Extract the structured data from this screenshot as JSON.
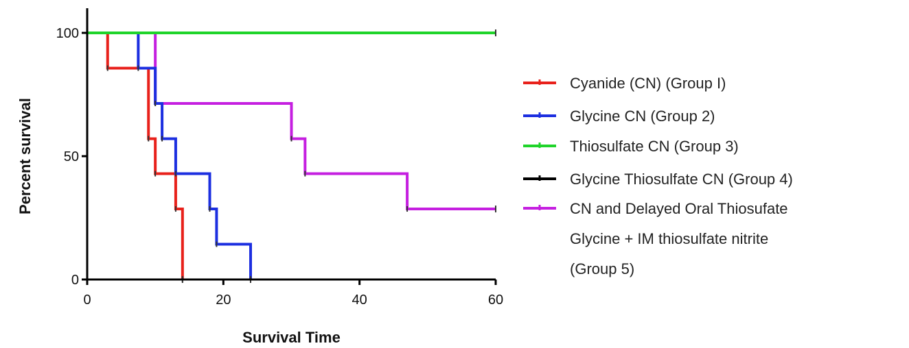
{
  "chart_data": {
    "type": "line",
    "xlabel": "Survival Time",
    "ylabel": "Percent survival",
    "xlim": [
      0,
      60
    ],
    "ylim": [
      0,
      100
    ],
    "x_ticks": [
      "0",
      "20",
      "40",
      "60"
    ],
    "y_ticks": [
      "0",
      "50",
      "100"
    ],
    "grid": false,
    "legend_position": "right",
    "step": true,
    "series": [
      {
        "name": "Cyanide (CN) (Group I)",
        "color": "#e8211b",
        "points": [
          [
            0,
            100
          ],
          [
            3,
            100
          ],
          [
            3,
            85.7
          ],
          [
            9,
            85.7
          ],
          [
            9,
            57.1
          ],
          [
            10,
            57.1
          ],
          [
            10,
            42.9
          ],
          [
            13,
            42.9
          ],
          [
            13,
            28.6
          ],
          [
            14,
            28.6
          ],
          [
            14,
            0
          ]
        ]
      },
      {
        "name": "Glycine CN (Group 2)",
        "color": "#1c2fe0",
        "points": [
          [
            0,
            100
          ],
          [
            7.5,
            100
          ],
          [
            7.5,
            85.7
          ],
          [
            10,
            85.7
          ],
          [
            10,
            71.4
          ],
          [
            11,
            71.4
          ],
          [
            11,
            57.1
          ],
          [
            13,
            57.1
          ],
          [
            13,
            42.9
          ],
          [
            18,
            42.9
          ],
          [
            18,
            28.6
          ],
          [
            19,
            28.6
          ],
          [
            19,
            14.3
          ],
          [
            24,
            14.3
          ],
          [
            24,
            0
          ]
        ]
      },
      {
        "name": "Thiosulfate CN (Group 3)",
        "color": "#1fd42a",
        "points": [
          [
            0,
            100
          ],
          [
            60,
            100
          ]
        ]
      },
      {
        "name": "Glycine Thiosulfate CN (Group 4)",
        "color": "#000000",
        "points": [
          [
            0,
            100
          ],
          [
            60,
            100
          ]
        ]
      },
      {
        "name": "CN and Delayed Oral Thiosufate Glycine + IM thiosulfate nitrite (Group 5)",
        "name_lines": [
          "CN and Delayed Oral Thiosufate",
          "Glycine + IM thiosulfate nitrite",
          "(Group 5)"
        ],
        "color": "#c51fe0",
        "points": [
          [
            0,
            100
          ],
          [
            10,
            100
          ],
          [
            10,
            71.4
          ],
          [
            30,
            71.4
          ],
          [
            30,
            57.1
          ],
          [
            32,
            57.1
          ],
          [
            32,
            42.9
          ],
          [
            47,
            42.9
          ],
          [
            47,
            28.6
          ],
          [
            60,
            28.6
          ]
        ]
      }
    ]
  }
}
